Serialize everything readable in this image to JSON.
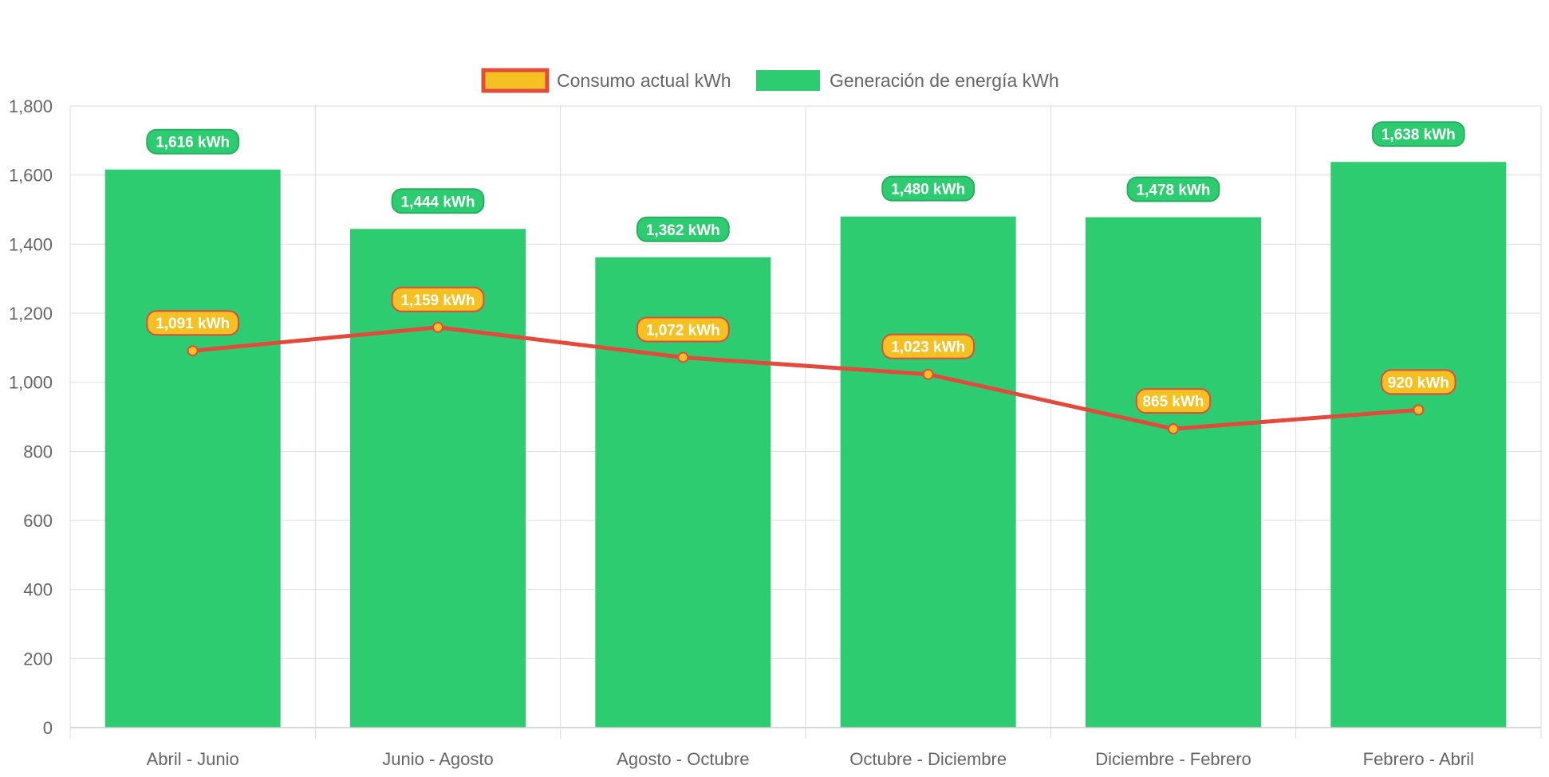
{
  "chart_data": {
    "type": "bar",
    "title": "",
    "xlabel": "",
    "ylabel": "",
    "ylim": [
      0,
      1800
    ],
    "yticks": [
      0,
      200,
      400,
      600,
      800,
      1000,
      1200,
      1400,
      1600,
      1800
    ],
    "ytick_labels": [
      "0",
      "200",
      "400",
      "600",
      "800",
      "1,000",
      "1,200",
      "1,400",
      "1,600",
      "1,800"
    ],
    "grid": true,
    "legend_position": "top-center",
    "categories": [
      "Abril - Junio",
      "Junio - Agosto",
      "Agosto - Octubre",
      "Octubre - Diciembre",
      "Diciembre - Febrero",
      "Febrero - Abril"
    ],
    "series": [
      {
        "name": "Consumo actual kWh",
        "type": "line",
        "values": [
          1091,
          1159,
          1072,
          1023,
          865,
          920
        ],
        "labels": [
          "1,091 kWh",
          "1,159 kWh",
          "1,072 kWh",
          "1,023 kWh",
          "865 kWh",
          "920 kWh"
        ],
        "line_color": "#e24b3b",
        "fill_color": "#f5c022"
      },
      {
        "name": "Generación de energía kWh",
        "type": "bar",
        "values": [
          1616,
          1444,
          1362,
          1480,
          1478,
          1638
        ],
        "labels": [
          "1,616 kWh",
          "1,444 kWh",
          "1,362 kWh",
          "1,480 kWh",
          "1,478 kWh",
          "1,638 kWh"
        ],
        "color": "#2ecc71",
        "label_border": "#27ae60"
      }
    ]
  }
}
